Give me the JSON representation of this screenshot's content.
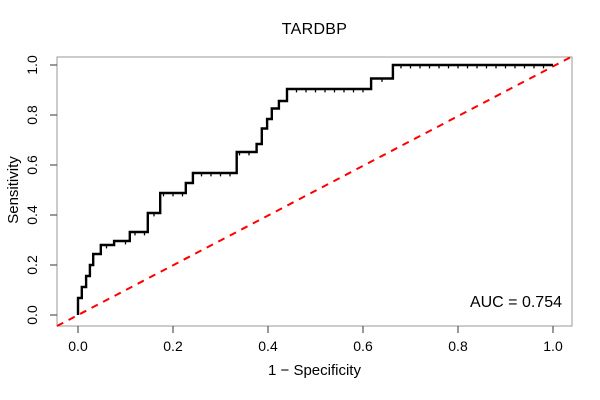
{
  "figure": {
    "title": "TARDBP",
    "annotation": "AUC = 0.754"
  },
  "chart_data": {
    "type": "line",
    "subtype": "roc-step-curve",
    "title": "TARDBP",
    "xlabel": "1 − Specificity",
    "ylabel": "Sensitivity",
    "xlim": [
      0.0,
      1.0
    ],
    "ylim": [
      0.0,
      1.0
    ],
    "x_tick_values": [
      0.0,
      0.2,
      0.4,
      0.6,
      0.8,
      1.0
    ],
    "x_tick_labels": [
      "0.0",
      "0.2",
      "0.4",
      "0.6",
      "0.8",
      "1.0"
    ],
    "y_tick_values": [
      0.0,
      0.2,
      0.4,
      0.6,
      0.8,
      1.0
    ],
    "y_tick_labels": [
      "0.0",
      "0.2",
      "0.4",
      "0.6",
      "0.8",
      "1.0"
    ],
    "grid": false,
    "legend": false,
    "auc": 0.754,
    "auc_label": "AUC = 0.754",
    "series": [
      {
        "name": "ROC curve",
        "draw": "step",
        "color": "#000000",
        "line_width": 2.4,
        "point_marks": true,
        "point_mark_spacing": 0.02,
        "points": [
          [
            0.0,
            0.0
          ],
          [
            0.0,
            0.068
          ],
          [
            0.008,
            0.068
          ],
          [
            0.008,
            0.112
          ],
          [
            0.017,
            0.112
          ],
          [
            0.017,
            0.156
          ],
          [
            0.025,
            0.156
          ],
          [
            0.025,
            0.2
          ],
          [
            0.032,
            0.2
          ],
          [
            0.032,
            0.244
          ],
          [
            0.048,
            0.244
          ],
          [
            0.048,
            0.28
          ],
          [
            0.076,
            0.28
          ],
          [
            0.076,
            0.296
          ],
          [
            0.109,
            0.296
          ],
          [
            0.109,
            0.332
          ],
          [
            0.147,
            0.332
          ],
          [
            0.147,
            0.408
          ],
          [
            0.173,
            0.408
          ],
          [
            0.173,
            0.488
          ],
          [
            0.227,
            0.488
          ],
          [
            0.227,
            0.528
          ],
          [
            0.242,
            0.528
          ],
          [
            0.242,
            0.568
          ],
          [
            0.334,
            0.568
          ],
          [
            0.334,
            0.652
          ],
          [
            0.376,
            0.652
          ],
          [
            0.376,
            0.684
          ],
          [
            0.387,
            0.684
          ],
          [
            0.387,
            0.746
          ],
          [
            0.398,
            0.746
          ],
          [
            0.398,
            0.784
          ],
          [
            0.408,
            0.784
          ],
          [
            0.408,
            0.826
          ],
          [
            0.423,
            0.826
          ],
          [
            0.423,
            0.856
          ],
          [
            0.44,
            0.856
          ],
          [
            0.44,
            0.904
          ],
          [
            0.617,
            0.904
          ],
          [
            0.617,
            0.946
          ],
          [
            0.663,
            0.946
          ],
          [
            0.663,
            1.0
          ],
          [
            1.0,
            1.0
          ]
        ]
      },
      {
        "name": "Chance line",
        "draw": "diagonal",
        "color": "#ff0000",
        "style": "dashed",
        "line_width": 2,
        "points": [
          [
            0.0,
            0.0
          ],
          [
            1.0,
            1.0
          ]
        ]
      }
    ],
    "colors": {
      "curve": "#000000",
      "diagonal": "#ff0000",
      "box_border": "#9a9a9a",
      "tick": "#555555",
      "text": "#000000",
      "background": "#ffffff"
    }
  }
}
